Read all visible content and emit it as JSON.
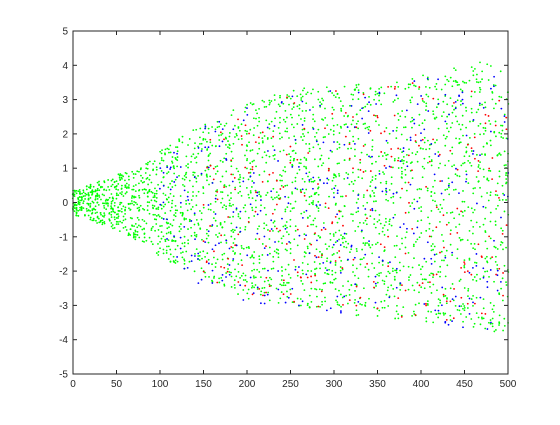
{
  "chart_data": {
    "type": "scatter",
    "title": "",
    "xlabel": "",
    "ylabel": "",
    "xlim": [
      0,
      500
    ],
    "ylim": [
      -5,
      5
    ],
    "xticks": [
      0,
      50,
      100,
      150,
      200,
      250,
      300,
      350,
      400,
      450,
      500
    ],
    "yticks": [
      -5,
      -4,
      -3,
      -2,
      -1,
      0,
      1,
      2,
      3,
      4,
      5
    ],
    "xtick_labels": [
      "0",
      "50",
      "100",
      "150",
      "200",
      "250",
      "300",
      "350",
      "400",
      "450",
      "500"
    ],
    "ytick_labels": [
      "-5",
      "-4",
      "-3",
      "-2",
      "-1",
      "0",
      "1",
      "2",
      "3",
      "4",
      "5"
    ],
    "grid": false,
    "legend": "none",
    "background": "#ffffff",
    "axis_color": "#262626",
    "series": [
      {
        "color": "#00ff00",
        "marker": "dot",
        "envelope": {
          "x": [
            0,
            50,
            90,
            100,
            150,
            200,
            250,
            300,
            350,
            400,
            450,
            470,
            500
          ],
          "upper": [
            0.35,
            0.8,
            1.3,
            1.6,
            2.3,
            2.9,
            3.3,
            3.4,
            3.5,
            3.7,
            4.0,
            4.1,
            3.8
          ],
          "lower": [
            -0.35,
            -0.8,
            -1.3,
            -1.6,
            -2.2,
            -2.8,
            -3.0,
            -3.2,
            -3.4,
            -3.5,
            -3.5,
            -3.8,
            -3.8
          ]
        }
      },
      {
        "color": "#0000ff",
        "marker": "dot",
        "x_start": 100,
        "envelope": {
          "x": [
            100,
            150,
            200,
            250,
            300,
            350,
            400,
            450,
            500
          ],
          "upper": [
            1.4,
            2.2,
            2.9,
            3.2,
            3.3,
            3.4,
            3.7,
            3.6,
            3.8
          ],
          "lower": [
            -1.4,
            -2.5,
            -2.9,
            -3.1,
            -3.2,
            -3.5,
            -3.6,
            -3.7,
            -3.8
          ]
        }
      },
      {
        "color": "#ff0000",
        "marker": "dot",
        "x_start": 150,
        "envelope": {
          "x": [
            150,
            200,
            250,
            300,
            350,
            400,
            450,
            500
          ],
          "upper": [
            2.0,
            2.8,
            3.2,
            3.3,
            3.4,
            3.6,
            3.6,
            3.7
          ],
          "lower": [
            -2.2,
            -2.8,
            -3.0,
            -3.2,
            -3.6,
            -3.5,
            -3.6,
            -3.7
          ]
        }
      }
    ]
  }
}
